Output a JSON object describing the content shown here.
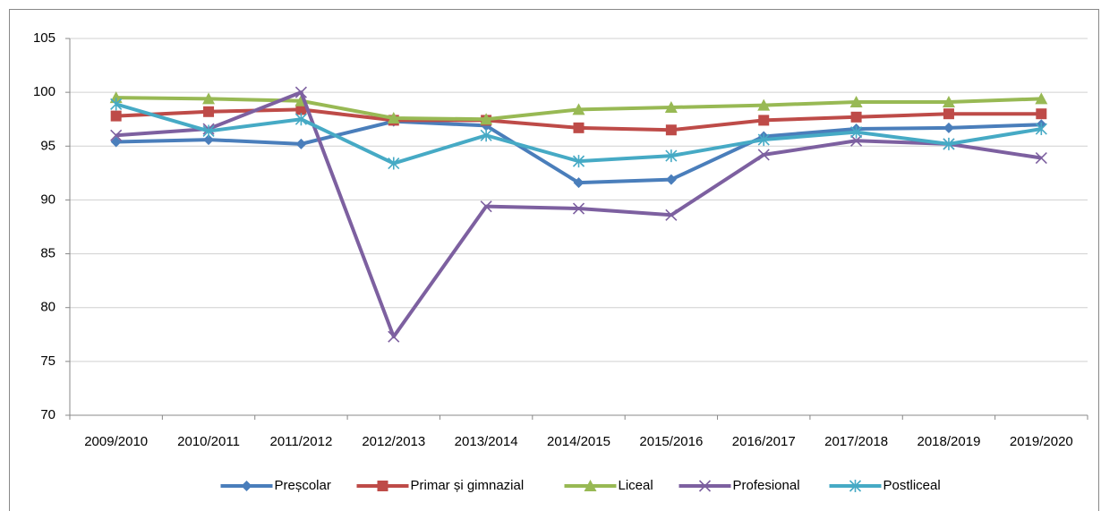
{
  "chart_data": {
    "type": "line",
    "categories": [
      "2009/2010",
      "2010/2011",
      "2011/2012",
      "2012/2013",
      "2013/2014",
      "2014/2015",
      "2015/2016",
      "2016/2017",
      "2017/2018",
      "2018/2019",
      "2019/2020"
    ],
    "series": [
      {
        "name": "Preșcolar",
        "color": "#4a7ebb",
        "marker": "diamond",
        "values": [
          95.4,
          95.6,
          95.2,
          97.3,
          96.9,
          91.6,
          91.9,
          95.9,
          96.6,
          96.7,
          97.0
        ]
      },
      {
        "name": "Primar și gimnazial",
        "color": "#be4b48",
        "marker": "square",
        "values": [
          97.8,
          98.2,
          98.4,
          97.4,
          97.4,
          96.7,
          96.5,
          97.4,
          97.7,
          98.0,
          98.0
        ]
      },
      {
        "name": "Liceal",
        "color": "#98b954",
        "marker": "triangle",
        "values": [
          99.5,
          99.4,
          99.2,
          97.6,
          97.5,
          98.4,
          98.6,
          98.8,
          99.1,
          99.1,
          99.4
        ]
      },
      {
        "name": "Profesional",
        "color": "#7d60a0",
        "marker": "x",
        "values": [
          96.0,
          96.6,
          100.0,
          77.3,
          89.4,
          89.2,
          88.6,
          94.2,
          95.5,
          95.2,
          93.9
        ]
      },
      {
        "name": "Postliceal",
        "color": "#46aac5",
        "marker": "star",
        "values": [
          98.9,
          96.4,
          97.5,
          93.4,
          96.0,
          93.6,
          94.1,
          95.6,
          96.3,
          95.2,
          96.6
        ]
      }
    ],
    "ylim": [
      70,
      105
    ],
    "yticks": [
      70,
      75,
      80,
      85,
      90,
      95,
      100,
      105
    ],
    "grid": true,
    "legend": "bottom"
  }
}
